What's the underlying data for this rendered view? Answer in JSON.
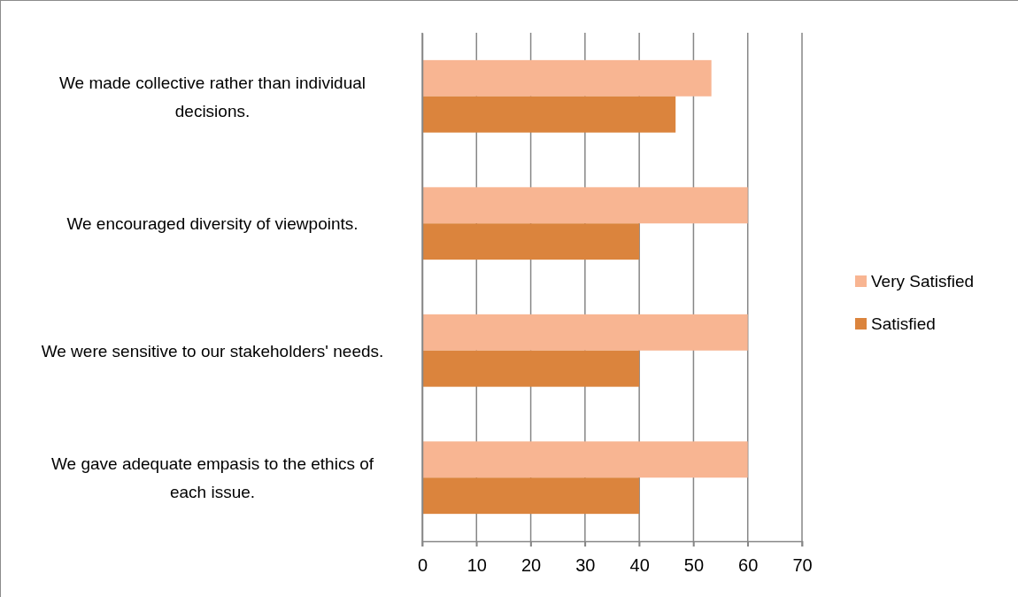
{
  "chart_data": {
    "type": "bar",
    "orientation": "horizontal",
    "categories": [
      "We made collective rather than individual decisions.",
      "We encouraged diversity of viewpoints.",
      "We were sensitive to our stakeholders' needs.",
      "We gave adequate empasis to the ethics of each issue."
    ],
    "series": [
      {
        "name": "Very Satisfied",
        "color": "#f8b592",
        "values": [
          53.3,
          60,
          60,
          60
        ]
      },
      {
        "name": "Satisfied",
        "color": "#db843d",
        "values": [
          46.7,
          40,
          40,
          40
        ]
      }
    ],
    "xlim": [
      0,
      70
    ],
    "xticks": [
      0,
      10,
      20,
      30,
      40,
      50,
      60,
      70
    ],
    "grid": "x",
    "legend": "right"
  }
}
